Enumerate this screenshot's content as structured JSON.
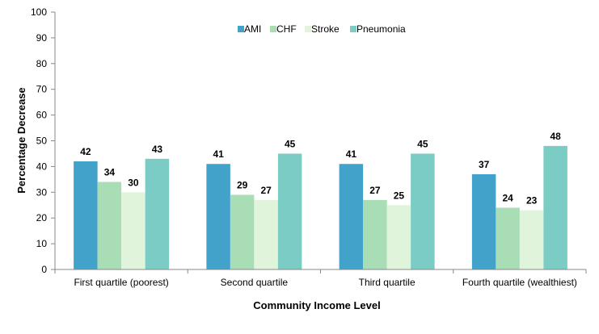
{
  "chart_data": {
    "type": "bar",
    "title": "",
    "xlabel": "Community Income Level",
    "ylabel": "Percentage Decrease",
    "ylim": [
      0,
      100
    ],
    "yticks": [
      0,
      10,
      20,
      30,
      40,
      50,
      60,
      70,
      80,
      90,
      100
    ],
    "grid": false,
    "legend_position": "top-center",
    "categories": [
      "First quartile (poorest)",
      "Second quartile",
      "Third quartile",
      "Fourth quartile (wealthiest)"
    ],
    "series": [
      {
        "name": "AMI",
        "color": "#43A2CA",
        "values": [
          42,
          41,
          41,
          37
        ]
      },
      {
        "name": "CHF",
        "color": "#A8DDB5",
        "values": [
          34,
          29,
          27,
          24
        ]
      },
      {
        "name": "Stroke",
        "color": "#E0F3DB",
        "values": [
          30,
          27,
          25,
          23
        ]
      },
      {
        "name": "Pneumonia",
        "color": "#7BCCC4",
        "values": [
          43,
          45,
          45,
          48
        ]
      }
    ]
  }
}
